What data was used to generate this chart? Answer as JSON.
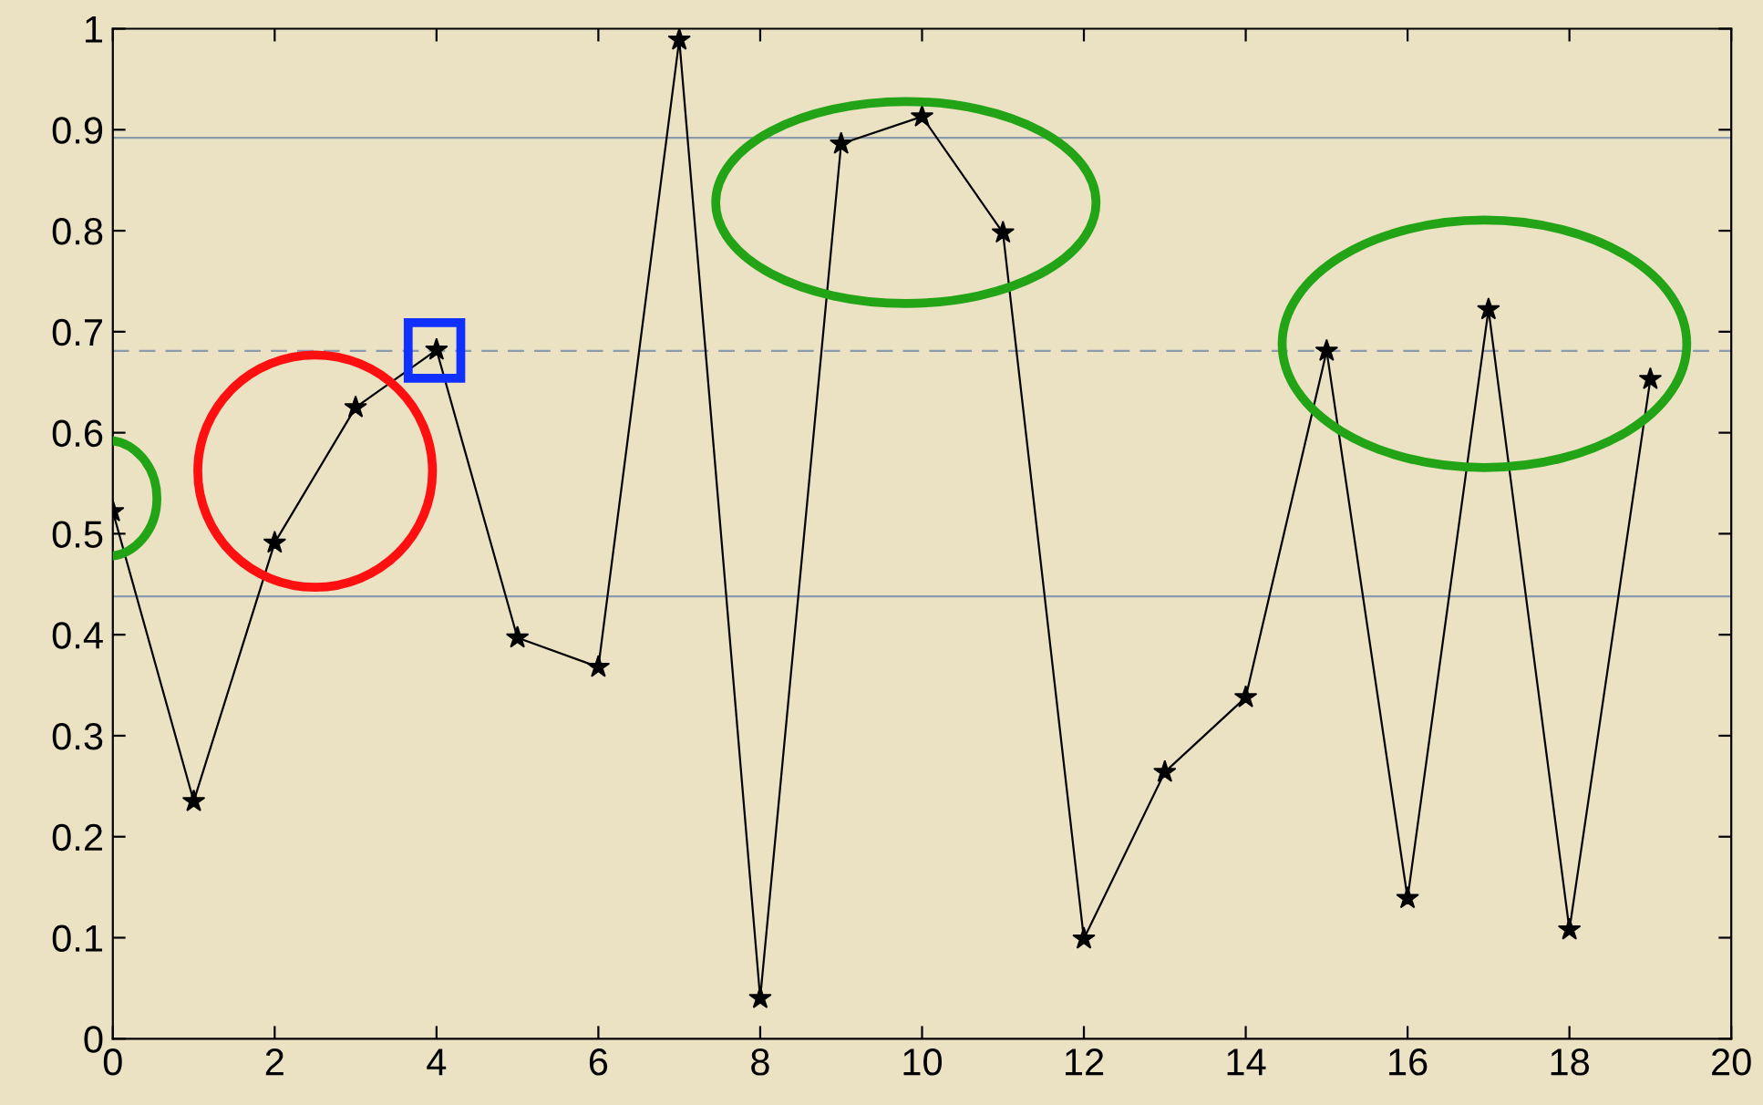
{
  "chart_data": {
    "type": "line",
    "x": [
      0,
      1,
      2,
      3,
      4,
      5,
      6,
      7,
      8,
      9,
      10,
      11,
      12,
      13,
      14,
      15,
      16,
      17,
      18,
      19
    ],
    "series": [
      {
        "color": "#000000",
        "values": [
          0.522,
          0.235,
          0.491,
          0.625,
          0.682,
          0.397,
          0.368,
          0.989,
          0.04,
          0.886,
          0.913,
          0.798,
          0.099,
          0.264,
          0.338,
          0.681,
          0.139,
          0.722,
          0.108,
          0.653
        ]
      }
    ],
    "xlim": [
      0,
      20
    ],
    "xticks": [
      0,
      2,
      4,
      6,
      8,
      10,
      12,
      14,
      16,
      18,
      20
    ],
    "ylim": [
      0,
      1
    ],
    "yticks": [
      0,
      0.1,
      0.2,
      0.3,
      0.4,
      0.5,
      0.6,
      0.7,
      0.8,
      0.9,
      1
    ],
    "ref_lines": [
      {
        "axis": "y",
        "value": 0.892,
        "color": "#8c9aae",
        "line_style": "solid"
      },
      {
        "axis": "y",
        "value": 0.681,
        "color": "#8c9aae",
        "line_style": "dashed"
      },
      {
        "axis": "y",
        "value": 0.438,
        "color": "#8c9aae",
        "line_style": "solid"
      }
    ],
    "marker": "star",
    "line_style": "solid",
    "grid": false,
    "legend": false
  }
}
